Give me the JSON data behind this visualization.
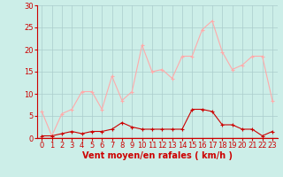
{
  "hours": [
    0,
    1,
    2,
    3,
    4,
    5,
    6,
    7,
    8,
    9,
    10,
    11,
    12,
    13,
    14,
    15,
    16,
    17,
    18,
    19,
    20,
    21,
    22,
    23
  ],
  "wind_avg": [
    0.5,
    0.5,
    1.0,
    1.5,
    1.0,
    1.5,
    1.5,
    2.0,
    3.5,
    2.5,
    2.0,
    2.0,
    2.0,
    2.0,
    2.0,
    6.5,
    6.5,
    6.0,
    3.0,
    3.0,
    2.0,
    2.0,
    0.5,
    1.5
  ],
  "wind_gust": [
    6.0,
    0.5,
    5.5,
    6.5,
    10.5,
    10.5,
    6.5,
    14.0,
    8.5,
    10.5,
    21.0,
    15.0,
    15.5,
    13.5,
    18.5,
    18.5,
    24.5,
    26.5,
    19.5,
    15.5,
    16.5,
    18.5,
    18.5,
    8.5
  ],
  "avg_color": "#cc0000",
  "gust_color": "#ffaaaa",
  "bg_color": "#cceee8",
  "grid_color": "#aacccc",
  "xlabel": "Vent moyen/en rafales ( km/h )",
  "ylim": [
    0,
    30
  ],
  "yticks": [
    0,
    5,
    10,
    15,
    20,
    25,
    30
  ],
  "xlim_min": -0.5,
  "xlim_max": 23.5,
  "xticks": [
    0,
    1,
    2,
    3,
    4,
    5,
    6,
    7,
    8,
    9,
    10,
    11,
    12,
    13,
    14,
    15,
    16,
    17,
    18,
    19,
    20,
    21,
    22,
    23
  ],
  "marker": "+",
  "markersize": 3,
  "linewidth": 0.8,
  "axis_fontsize": 6,
  "xlabel_fontsize": 7
}
